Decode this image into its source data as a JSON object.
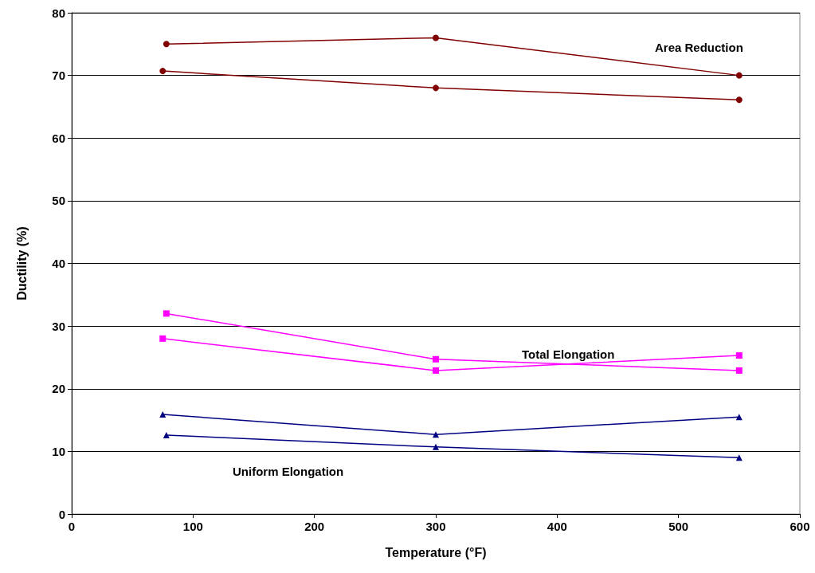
{
  "chart_data": {
    "type": "line",
    "xlabel": "Temperature (°F)",
    "ylabel": "Ductility (%)",
    "xlim": [
      0,
      600
    ],
    "xticks": [
      0,
      100,
      200,
      300,
      400,
      500,
      600
    ],
    "ylim": [
      0,
      80
    ],
    "yticks": [
      0,
      10,
      20,
      30,
      40,
      50,
      60,
      70,
      80
    ],
    "grid": "y",
    "line_style": "solid",
    "series": [
      {
        "color": "#800000",
        "marker": "circle",
        "x": [
          78,
          300,
          550
        ],
        "values": [
          75,
          76,
          70
        ]
      },
      {
        "color": "#800000",
        "marker": "circle",
        "x": [
          75,
          300,
          550
        ],
        "values": [
          70.7,
          68,
          66.1
        ]
      },
      {
        "color": "#ff00ff",
        "marker": "square",
        "x": [
          78,
          300,
          550
        ],
        "values": [
          32,
          24.7,
          22.9
        ]
      },
      {
        "color": "#ff00ff",
        "marker": "square",
        "x": [
          75,
          300,
          550
        ],
        "values": [
          28,
          22.9,
          25.3
        ]
      },
      {
        "color": "#000080",
        "marker": "triangle",
        "x": [
          75,
          300,
          550
        ],
        "values": [
          15.9,
          12.7,
          15.5
        ]
      },
      {
        "color": "#000080",
        "marker": "triangle",
        "x": [
          78,
          300,
          550
        ],
        "values": [
          12.6,
          10.7,
          9.0
        ]
      }
    ],
    "annotations": [
      "Area Reduction",
      "Total Elongation",
      "Uniform Elongation"
    ]
  }
}
